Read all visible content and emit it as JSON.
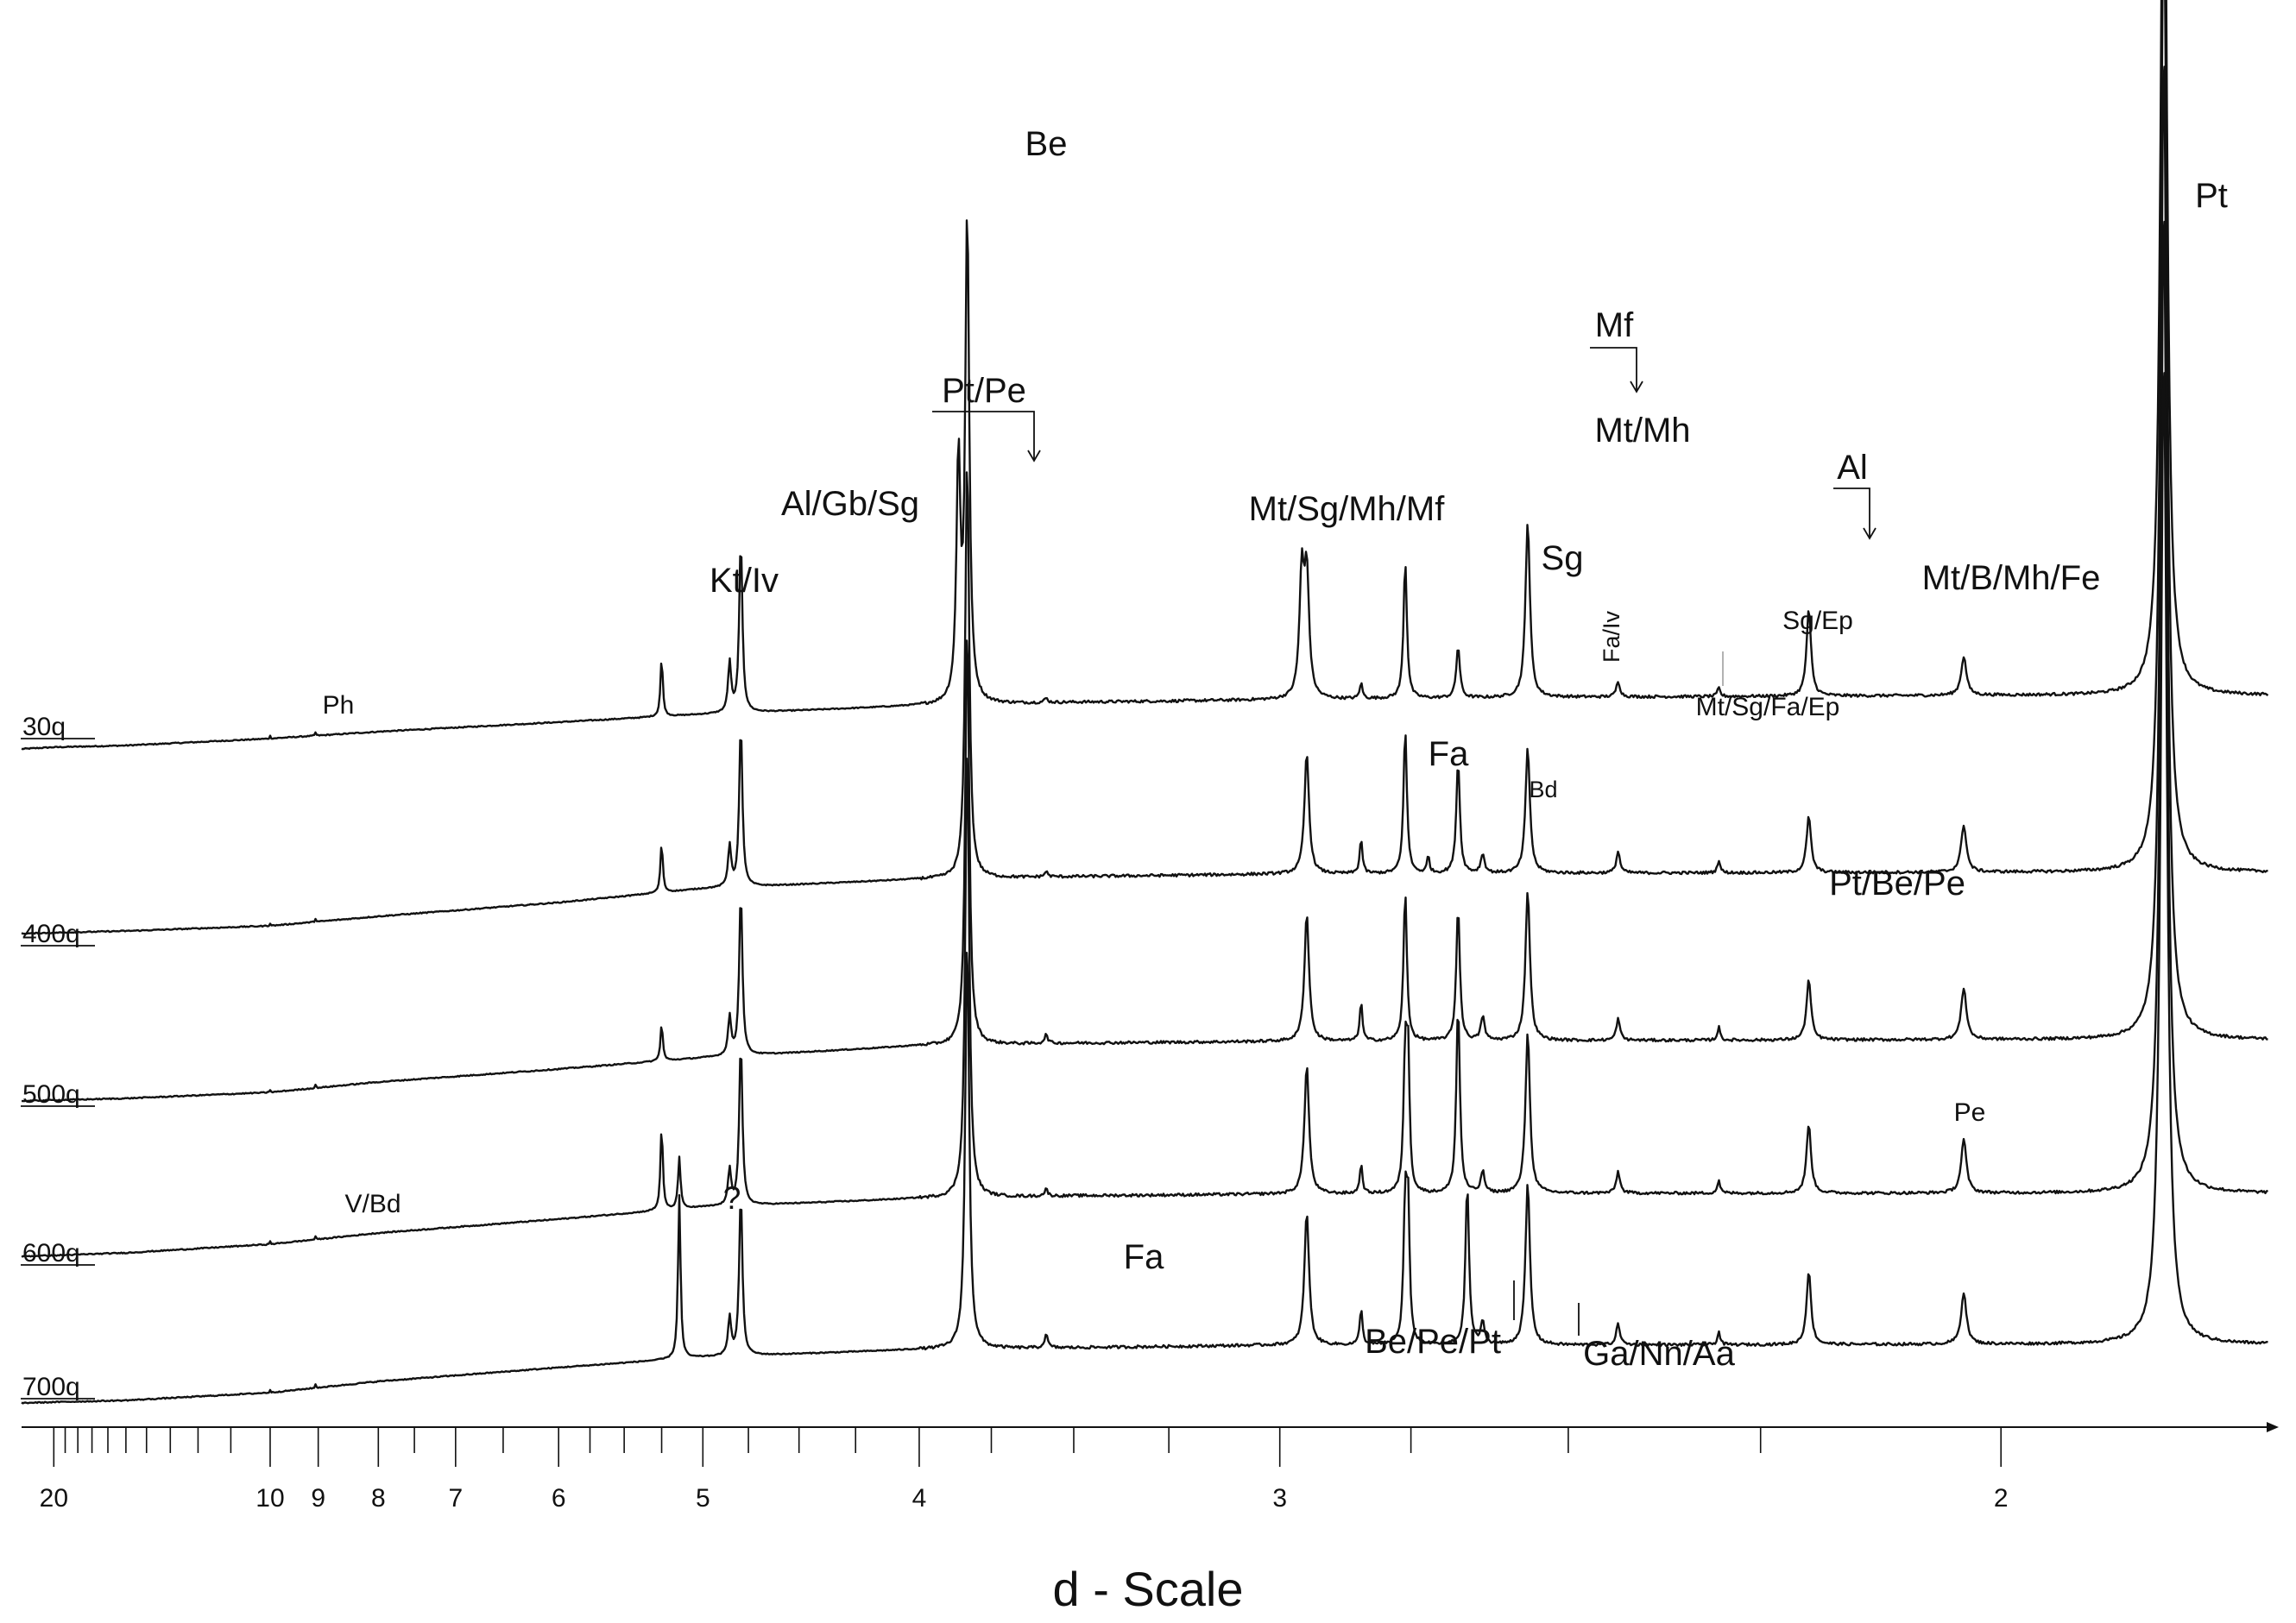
{
  "chart_data": {
    "type": "line",
    "xlabel": "d - Scale",
    "ylabel": "",
    "x_scale": "reciprocal",
    "xlim": [
      23.5,
      1.78
    ],
    "grid": false,
    "legend": "none",
    "x_ticks": {
      "labeled": [
        20,
        10,
        9,
        8,
        7,
        6,
        5,
        4,
        3,
        2
      ],
      "minor": [
        19,
        18,
        17,
        16,
        15,
        14,
        13,
        12,
        11,
        7.5,
        6.5,
        5.75,
        5.5,
        5.25,
        4.75,
        4.5,
        4.25,
        3.75,
        3.5,
        3.25,
        2.75,
        2.5,
        2.25
      ]
    },
    "series": [
      {
        "name": "30q",
        "baseline": [
          [
            23.5,
            0
          ],
          [
            20,
            2
          ],
          [
            15,
            4
          ],
          [
            10,
            12
          ],
          [
            8,
            20
          ],
          [
            6,
            31
          ],
          [
            5,
            40
          ],
          [
            4,
            50
          ],
          [
            3.5,
            54
          ],
          [
            3,
            57
          ],
          [
            2.5,
            60
          ],
          [
            2,
            62
          ],
          [
            1.78,
            62
          ]
        ]
      },
      {
        "name": "400q",
        "baseline": [
          [
            23.5,
            0
          ],
          [
            20,
            1
          ],
          [
            15,
            3
          ],
          [
            10,
            9
          ],
          [
            8,
            20
          ],
          [
            6,
            36
          ],
          [
            5,
            52
          ],
          [
            4,
            63
          ],
          [
            3.5,
            66
          ],
          [
            3,
            69
          ],
          [
            2.5,
            70
          ],
          [
            2,
            71
          ],
          [
            1.78,
            71
          ]
        ]
      },
      {
        "name": "500q",
        "baseline": [
          [
            23.5,
            0
          ],
          [
            20,
            1
          ],
          [
            15,
            3
          ],
          [
            10,
            10
          ],
          [
            8,
            22
          ],
          [
            6,
            37
          ],
          [
            5,
            50
          ],
          [
            4,
            64
          ],
          [
            3.5,
            67
          ],
          [
            3,
            69
          ],
          [
            2.5,
            70
          ],
          [
            2,
            71
          ],
          [
            1.78,
            71
          ]
        ]
      },
      {
        "name": "600q",
        "baseline": [
          [
            23.5,
            0
          ],
          [
            20,
            1
          ],
          [
            15,
            4
          ],
          [
            10,
            14
          ],
          [
            8,
            27
          ],
          [
            6,
            43
          ],
          [
            5,
            57
          ],
          [
            4,
            67
          ],
          [
            3.5,
            70
          ],
          [
            3,
            72
          ],
          [
            2.5,
            73
          ],
          [
            2,
            73
          ],
          [
            1.78,
            73
          ]
        ]
      },
      {
        "name": "700q",
        "baseline": [
          [
            23.5,
            0
          ],
          [
            20,
            1
          ],
          [
            15,
            3
          ],
          [
            10,
            12
          ],
          [
            8,
            25
          ],
          [
            6,
            41
          ],
          [
            5,
            53
          ],
          [
            4,
            62
          ],
          [
            3.5,
            64
          ],
          [
            3,
            67
          ],
          [
            2.5,
            67
          ],
          [
            2,
            68
          ],
          [
            1.78,
            68
          ]
        ]
      }
    ],
    "peaks": [
      {
        "d": 10.0,
        "width": 0.02,
        "h": [
          3,
          3,
          3,
          3,
          3
        ]
      },
      {
        "d": 9.05,
        "width": 0.02,
        "h": [
          4,
          4,
          4,
          4,
          4
        ]
      },
      {
        "d": 5.25,
        "width": 0.018,
        "h": [
          68,
          58,
          43,
          98,
          0
        ]
      },
      {
        "d": 5.14,
        "width": 0.018,
        "h": [
          0,
          0,
          0,
          60,
          190
        ]
      },
      {
        "d": 4.85,
        "width": 0.02,
        "h": [
          58,
          48,
          45,
          42,
          45
        ]
      },
      {
        "d": 4.79,
        "width": 0.02,
        "h": [
          200,
          188,
          190,
          188,
          188
        ]
      },
      {
        "d": 3.86,
        "width": 0.016,
        "h": [
          280,
          0,
          0,
          0,
          0
        ]
      },
      {
        "d": 3.83,
        "width": 0.016,
        "h": [
          565,
          490,
          490,
          530,
          480
        ]
      },
      {
        "d": 3.58,
        "width": 0.012,
        "h": [
          5,
          6,
          10,
          8,
          15
        ]
      },
      {
        "d": 2.955,
        "width": 0.011,
        "h": [
          140,
          0,
          0,
          0,
          0
        ]
      },
      {
        "d": 2.945,
        "width": 0.011,
        "h": [
          140,
          140,
          148,
          150,
          155
        ]
      },
      {
        "d": 2.84,
        "width": 0.006,
        "h": [
          18,
          40,
          45,
          34,
          42
        ]
      },
      {
        "d": 2.76,
        "width": 0.007,
        "h": [
          160,
          168,
          173,
          155,
          158
        ]
      },
      {
        "d": 2.755,
        "width": 0.006,
        "h": [
          0,
          0,
          0,
          150,
          148
        ]
      },
      {
        "d": 2.72,
        "width": 0.005,
        "h": [
          0,
          20,
          0,
          0,
          0
        ]
      },
      {
        "d": 2.67,
        "width": 0.007,
        "h": [
          60,
          130,
          155,
          218,
          0
        ]
      },
      {
        "d": 2.655,
        "width": 0.007,
        "h": [
          0,
          0,
          0,
          0,
          185
        ]
      },
      {
        "d": 2.63,
        "width": 0.007,
        "h": [
          0,
          22,
          28,
          25,
          25
        ]
      },
      {
        "d": 2.56,
        "width": 0.008,
        "h": [
          205,
          145,
          175,
          188,
          188
        ]
      },
      {
        "d": 2.43,
        "width": 0.006,
        "h": [
          18,
          25,
          25,
          25,
          25
        ]
      },
      {
        "d": 2.3,
        "width": 0.004,
        "h": [
          10,
          15,
          15,
          15,
          15
        ]
      },
      {
        "d": 2.195,
        "width": 0.006,
        "h": [
          100,
          65,
          70,
          80,
          85
        ]
      },
      {
        "d": 2.1,
        "width": 0.006,
        "h": [
          0,
          0,
          0,
          0,
          0
        ]
      },
      {
        "d": 2.035,
        "width": 0.006,
        "h": [
          45,
          55,
          60,
          62,
          60
        ]
      },
      {
        "d": 1.92,
        "width": 0.005,
        "h": [
          0,
          0,
          0,
          0,
          0
        ]
      },
      {
        "d": 1.86,
        "width": 0.006,
        "h": [
          1150,
          1150,
          1150,
          1150,
          1150
        ]
      }
    ],
    "annotations": [
      {
        "text": "Be",
        "d": 3.83
      },
      {
        "text": "Pt/Pe",
        "d": 3.86
      },
      {
        "text": "Al/Gb/Sg",
        "d": 4.79
      },
      {
        "text": "Kt/Iv",
        "d": 5.25
      },
      {
        "text": "Ph",
        "d": 10.0
      },
      {
        "text": "V/Bd",
        "d": 9.05
      },
      {
        "text": "?",
        "d": 5.14
      },
      {
        "text": "Mt/Sg/Mh/Mf",
        "d": 2.95
      },
      {
        "text": "Sg",
        "d": 2.67
      },
      {
        "text": "Fa/Iv",
        "d": 2.63
      },
      {
        "text": "Mf",
        "d": 2.56
      },
      {
        "text": "Mt/Mh",
        "d": 2.56
      },
      {
        "text": "Al",
        "d": 2.195
      },
      {
        "text": "Sg/Ep",
        "d": 2.3
      },
      {
        "text": "Mt/B/Mh/Fe",
        "d": 2.035
      },
      {
        "text": "Mt/Sg/Fa/Ep",
        "d": 2.43
      },
      {
        "text": "Fa",
        "d": 2.84
      },
      {
        "text": "Bd",
        "d": 2.72
      },
      {
        "text": "Pt/Be/Pe",
        "d": 2.195
      },
      {
        "text": "Pe",
        "d": 2.1
      },
      {
        "text": "Fa",
        "d": 3.58
      },
      {
        "text": "Be/Pe/Pt",
        "d": 2.755
      },
      {
        "text": "Ga/Nn/Aa",
        "d": 2.655
      },
      {
        "text": "Pt",
        "d": 1.86
      }
    ]
  }
}
